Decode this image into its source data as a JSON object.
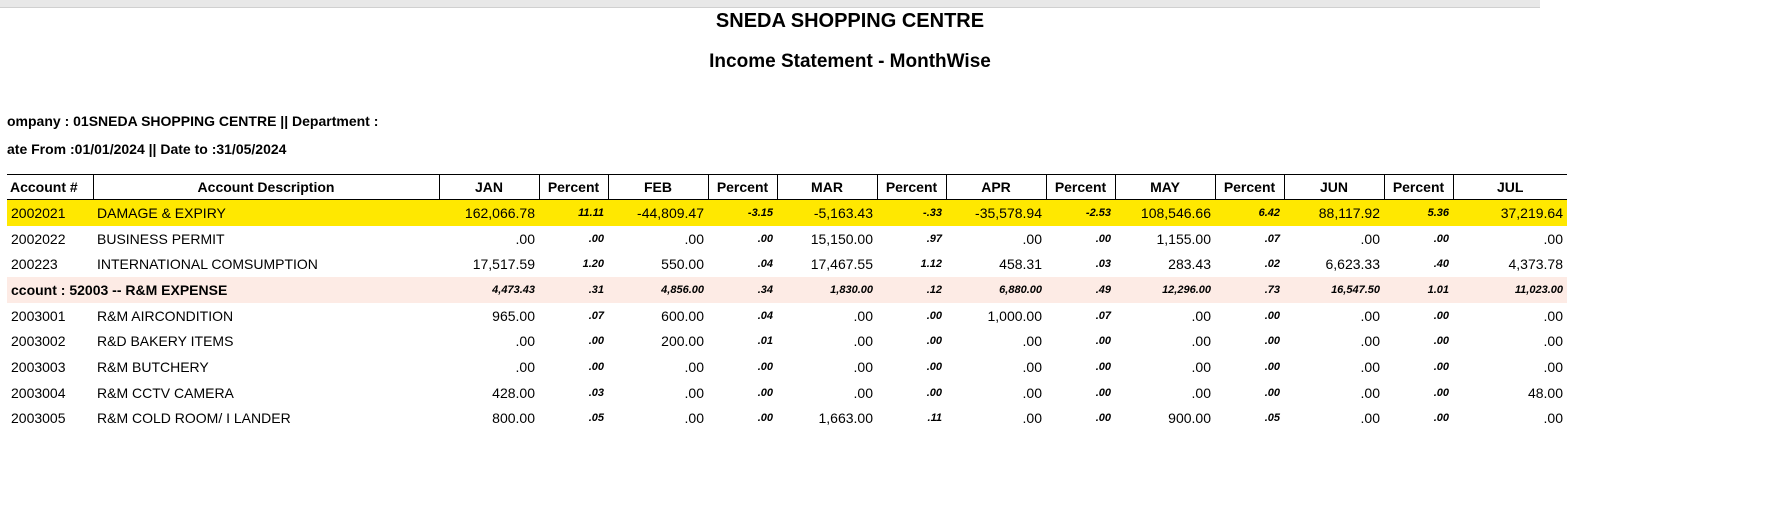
{
  "report": {
    "company": "SNEDA SHOPPING CENTRE",
    "title": "Income Statement - MonthWise",
    "meta_line1": "ompany : 01SNEDA SHOPPING CENTRE   || Department :",
    "meta_line2": "ate From :01/01/2024  || Date to :31/05/2024"
  },
  "columns": [
    "Account #",
    "Account Description",
    "JAN",
    "Percent",
    "FEB",
    "Percent",
    "MAR",
    "Percent",
    "APR",
    "Percent",
    "MAY",
    "Percent",
    "JUN",
    "Percent",
    "JUL"
  ],
  "rows": [
    {
      "type": "highlight",
      "acct": "2002021",
      "desc": "DAMAGE & EXPIRY",
      "vals": [
        "162,066.78",
        "11.11",
        "-44,809.47",
        "-3.15",
        "-5,163.43",
        "-.33",
        "-35,578.94",
        "-2.53",
        "108,546.66",
        "6.42",
        "88,117.92",
        "5.36",
        "37,219.64"
      ]
    },
    {
      "type": "normal",
      "acct": "2002022",
      "desc": "BUSINESS PERMIT",
      "vals": [
        ".00",
        ".00",
        ".00",
        ".00",
        "15,150.00",
        ".97",
        ".00",
        ".00",
        "1,155.00",
        ".07",
        ".00",
        ".00",
        ".00"
      ]
    },
    {
      "type": "normal",
      "acct": "200223",
      "desc": "INTERNATIONAL COMSUMPTION",
      "vals": [
        "17,517.59",
        "1.20",
        "550.00",
        ".04",
        "17,467.55",
        "1.12",
        "458.31",
        ".03",
        "283.43",
        ".02",
        "6,623.33",
        ".40",
        "4,373.78"
      ]
    },
    {
      "type": "subtotal",
      "acct": "ccount : 52003 -- R&M EXPENSE",
      "desc": "",
      "vals": [
        "4,473.43",
        ".31",
        "4,856.00",
        ".34",
        "1,830.00",
        ".12",
        "6,880.00",
        ".49",
        "12,296.00",
        ".73",
        "16,547.50",
        "1.01",
        "11,023.00"
      ]
    },
    {
      "type": "normal",
      "acct": "2003001",
      "desc": "R&M AIRCONDITION",
      "vals": [
        "965.00",
        ".07",
        "600.00",
        ".04",
        ".00",
        ".00",
        "1,000.00",
        ".07",
        ".00",
        ".00",
        ".00",
        ".00",
        ".00"
      ]
    },
    {
      "type": "normal",
      "acct": "2003002",
      "desc": "R&D BAKERY ITEMS",
      "vals": [
        ".00",
        ".00",
        "200.00",
        ".01",
        ".00",
        ".00",
        ".00",
        ".00",
        ".00",
        ".00",
        ".00",
        ".00",
        ".00"
      ]
    },
    {
      "type": "normal",
      "acct": "2003003",
      "desc": "R&M BUTCHERY",
      "vals": [
        ".00",
        ".00",
        ".00",
        ".00",
        ".00",
        ".00",
        ".00",
        ".00",
        ".00",
        ".00",
        ".00",
        ".00",
        ".00"
      ]
    },
    {
      "type": "normal",
      "acct": "2003004",
      "desc": "R&M CCTV CAMERA",
      "vals": [
        "428.00",
        ".03",
        ".00",
        ".00",
        ".00",
        ".00",
        ".00",
        ".00",
        ".00",
        ".00",
        ".00",
        ".00",
        "48.00"
      ]
    },
    {
      "type": "normal",
      "acct": "2003005",
      "desc": "R&M COLD ROOM/ I LANDER",
      "vals": [
        "800.00",
        ".05",
        ".00",
        ".00",
        "1,663.00",
        ".11",
        ".00",
        ".00",
        "900.00",
        ".05",
        ".00",
        ".00",
        ".00"
      ]
    }
  ]
}
